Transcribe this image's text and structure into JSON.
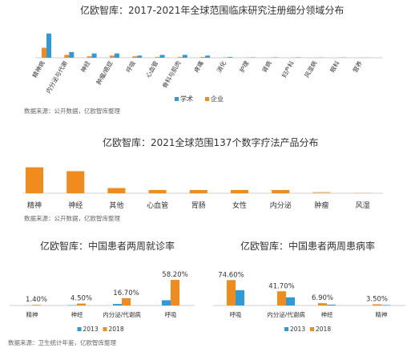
{
  "colors": {
    "blue": "#2E9BD8",
    "orange": "#F08C1E",
    "axis": "#bfbfbf"
  },
  "chart_data": [
    {
      "type": "bar",
      "title": "亿欧智库：2017-2021年全球范围临床研究注册细分领域分布",
      "categories": [
        "精神病",
        "内分泌与代谢",
        "神经",
        "肿瘤/癌症",
        "呼吸",
        "心血管",
        "骨科与肌肉",
        "疼痛",
        "消化",
        "护理",
        "肾病",
        "妇产科",
        "风湿病",
        "眼科",
        "营养"
      ],
      "series": [
        {
          "name": "学术",
          "values": [
            34,
            8,
            6,
            6,
            3,
            4,
            4,
            3,
            1,
            0.5,
            0.5,
            0.5,
            0.3,
            0.3,
            0.2
          ]
        },
        {
          "name": "企业",
          "values": [
            14,
            4,
            2,
            3,
            2,
            1,
            1,
            1,
            0.5,
            0.3,
            0.3,
            0.3,
            0.2,
            0.2,
            0.2
          ]
        }
      ],
      "ylim": [
        0,
        36
      ],
      "source": "数据来源：公开数据，亿欧智库整理"
    },
    {
      "type": "bar",
      "title": "亿欧智库：2021全球范围137个数字疗法产品分布",
      "categories": [
        "精神",
        "神经",
        "其他",
        "心血管",
        "胃肠",
        "女性",
        "内分泌",
        "肿瘤",
        "风湿"
      ],
      "values": [
        40,
        34,
        8,
        5,
        5,
        5,
        5,
        2,
        0.5
      ],
      "ylim": [
        0,
        42
      ],
      "source": "数据来源：公开数据，亿欧智库整理"
    },
    {
      "type": "bar",
      "title": "亿欧智库：中国患者两周就诊率",
      "categories": [
        "精神",
        "神经",
        "内分泌/代谢病",
        "呼吸"
      ],
      "series": [
        {
          "name": "2013",
          "values": [
            0.2,
            0.8,
            3.5,
            12
          ]
        },
        {
          "name": "2018",
          "values": [
            1.4,
            4.5,
            16.7,
            58.2
          ]
        }
      ],
      "labels": [
        "1.40%",
        "4.50%",
        "16.70%",
        "58.20%"
      ],
      "ylim": [
        0,
        62
      ]
    },
    {
      "type": "bar",
      "title": "亿欧智库：中国患者两周患病率",
      "categories": [
        "呼吸",
        "内分泌/代谢病",
        "神经",
        "精神"
      ],
      "series": [
        {
          "name": "2013",
          "values": [
            45,
            24,
            2.5,
            1.5
          ]
        },
        {
          "name": "2018",
          "values": [
            74.6,
            41.7,
            6.9,
            3.5
          ]
        }
      ],
      "labels": [
        "74.60%",
        "41.70%",
        "6.90%",
        "3.50%"
      ],
      "ylim": [
        0,
        80
      ]
    }
  ],
  "footer": {
    "source": "数据来源：卫生统计年鉴，亿欧智库整理"
  }
}
